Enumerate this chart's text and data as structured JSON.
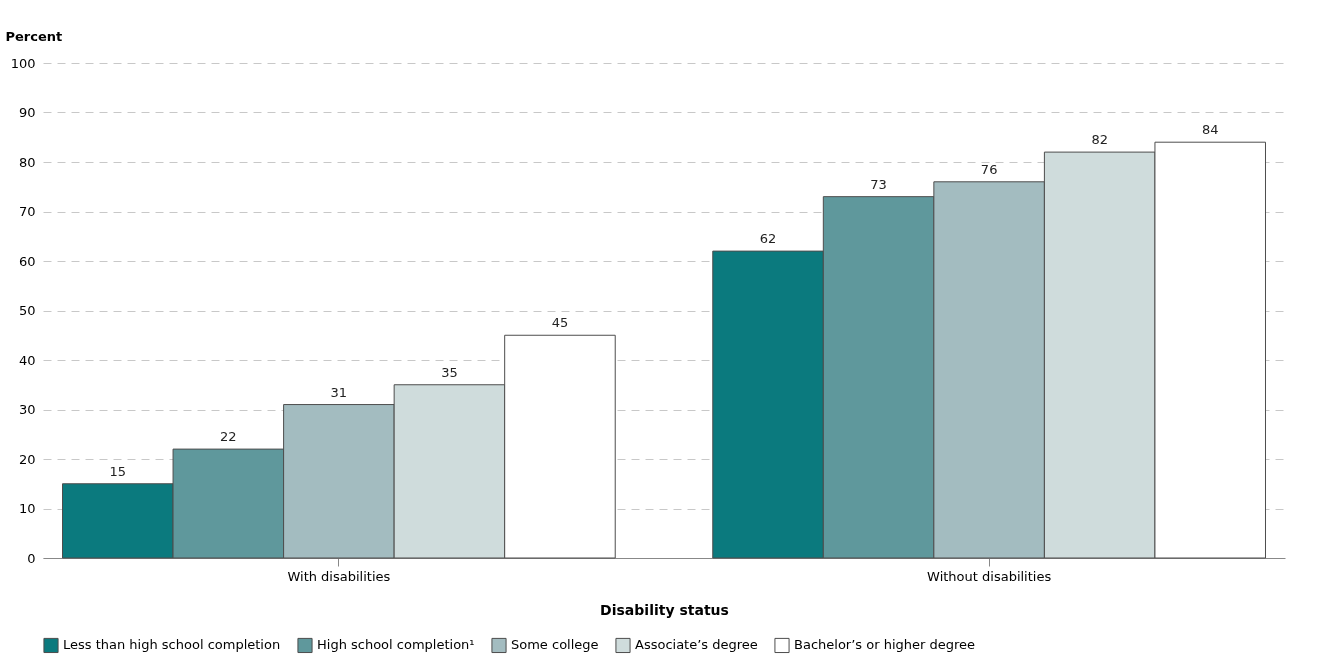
{
  "chart_data": {
    "type": "bar",
    "xlabel": "Disability status",
    "ylabel": "Percent",
    "categories": [
      "With disabilities",
      "Without disabilities"
    ],
    "series": [
      {
        "name": "Less than high school completion",
        "color": "#0b7a7e",
        "values": [
          15,
          62
        ]
      },
      {
        "name": "High school completion¹",
        "color": "#5f989c",
        "values": [
          22,
          73
        ]
      },
      {
        "name": "Some college",
        "color": "#a3bcc0",
        "values": [
          31,
          76
        ]
      },
      {
        "name": "Associate’s degree",
        "color": "#cfdcdc",
        "values": [
          35,
          82
        ]
      },
      {
        "name": "Bachelor’s or higher degree",
        "color": "#ffffff",
        "values": [
          45,
          84
        ]
      }
    ],
    "ylim": [
      0,
      100
    ],
    "yticks": [
      0,
      10,
      20,
      30,
      40,
      50,
      60,
      70,
      80,
      90,
      100
    ],
    "grid": "y",
    "legend": "bottom",
    "data_labels": true
  }
}
